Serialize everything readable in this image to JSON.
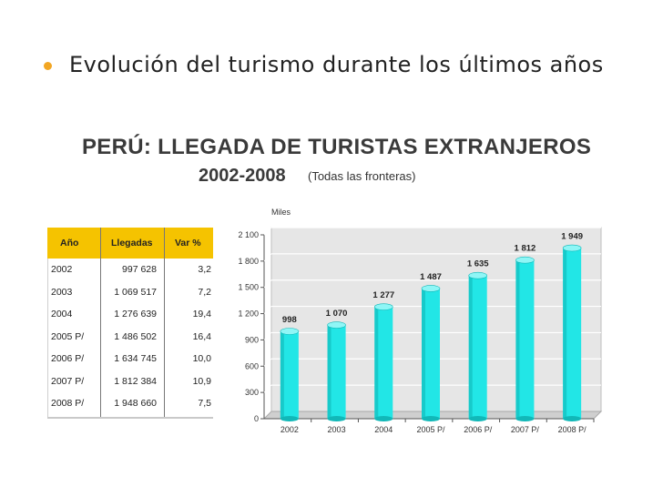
{
  "bullet": {
    "text": "Evolución del turismo durante los últimos años"
  },
  "figure": {
    "title": "PERÚ: LLEGADA DE TURISTAS EXTRANJEROS",
    "years": "2002-2008",
    "note": "(Todas las fronteras)"
  },
  "table": {
    "headers": [
      "Año",
      "Llegadas",
      "Var %"
    ],
    "rows": [
      [
        "2002",
        "997 628",
        "3,2"
      ],
      [
        "2003",
        "1 069 517",
        "7,2"
      ],
      [
        "2004",
        "1 276 639",
        "19,4"
      ],
      [
        "2005 P/",
        "1 486 502",
        "16,4"
      ],
      [
        "2006 P/",
        "1 634 745",
        "10,0"
      ],
      [
        "2007 P/",
        "1 812 384",
        "10,9"
      ],
      [
        "2008 P/",
        "1 948 660",
        "7,5"
      ]
    ]
  },
  "colors": {
    "bar": "#22e6e6",
    "bar_dark": "#11b8b8",
    "header": "#f5c300",
    "bullet": "#f2a623"
  },
  "chart_data": {
    "type": "bar",
    "ylabel": "Miles",
    "categories": [
      "2002",
      "2003",
      "2004",
      "2005 P/",
      "2006 P/",
      "2007 P/",
      "2008 P/"
    ],
    "values": [
      998,
      1070,
      1277,
      1487,
      1635,
      1812,
      1949
    ],
    "value_labels": [
      "998",
      "1 070",
      "1 277",
      "1 487",
      "1 635",
      "1 812",
      "1 949"
    ],
    "yticks": [
      0,
      300,
      600,
      900,
      1200,
      1500,
      1800,
      2100
    ],
    "ytick_labels": [
      "0",
      "300",
      "600",
      "900",
      "1 200",
      "1 500",
      "1 800",
      "2 100"
    ],
    "ylim": [
      0,
      2100
    ],
    "grid": true
  }
}
